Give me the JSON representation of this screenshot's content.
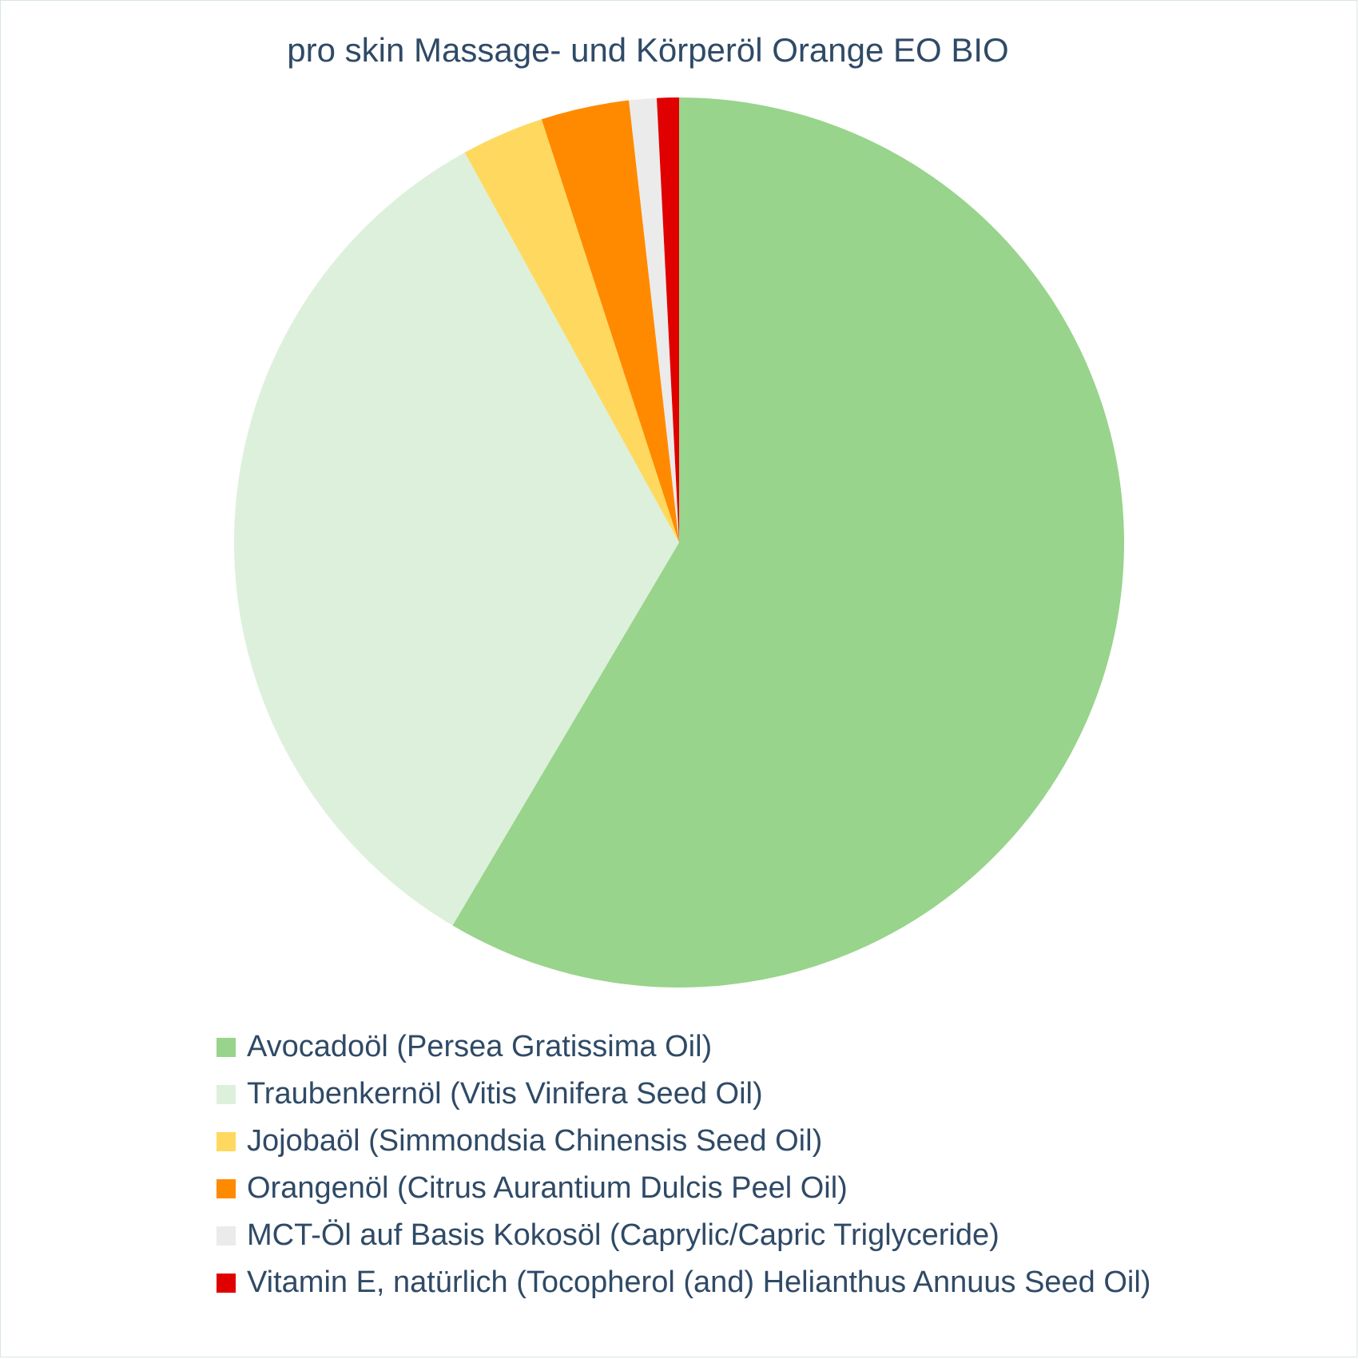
{
  "chart_data": {
    "type": "pie",
    "title": "pro skin Massage- und Körperöl Orange EO BIO",
    "legend_position": "bottom",
    "start_angle": "12 o'clock",
    "direction": "clockwise",
    "slices": [
      {
        "label": "Avocadoöl (Persea Gratissima Oil)",
        "value": 58.5,
        "color": "#98d48b"
      },
      {
        "label": "Traubenkernöl (Vitis Vinifera Seed Oil)",
        "value": 33.5,
        "color": "#ddf0db"
      },
      {
        "label": "Jojobaöl (Simmondsia Chinensis Seed Oil)",
        "value": 3.0,
        "color": "#ffd95f"
      },
      {
        "label": "Orangenöl (Citrus Aurantium Dulcis Peel Oil)",
        "value": 3.2,
        "color": "#ff8a00"
      },
      {
        "label": "MCT-Öl auf Basis Kokosöl (Caprylic/Capric Triglyceride)",
        "value": 1.0,
        "color": "#ebebeb"
      },
      {
        "label": "Vitamin E, natürlich (Tocopherol (and) Helianthus Annuus Seed Oil)",
        "value": 0.8,
        "color": "#e00000"
      }
    ]
  }
}
